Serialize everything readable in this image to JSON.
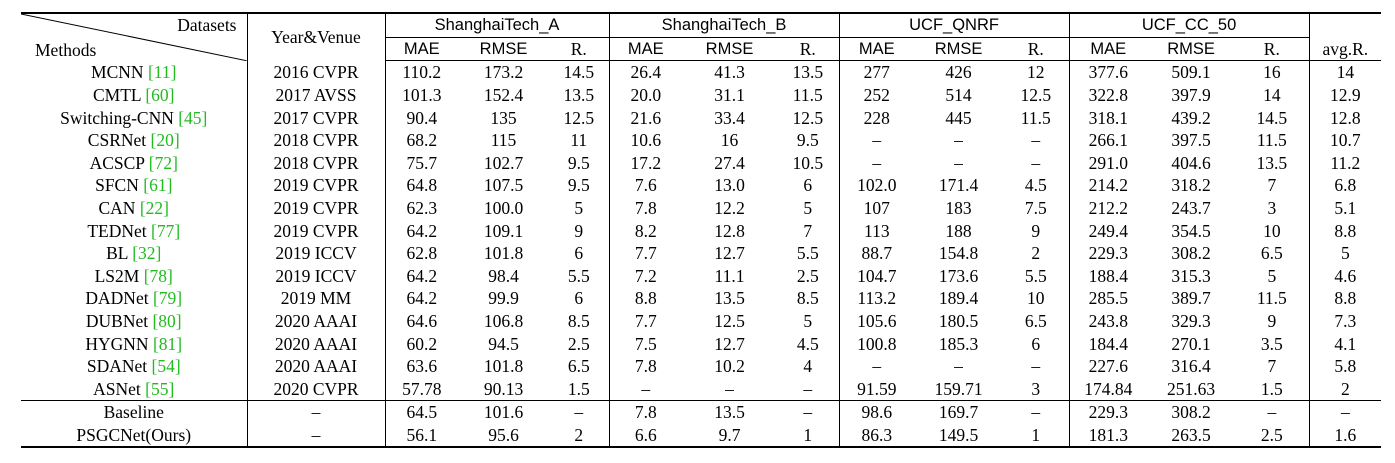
{
  "header": {
    "datasets_label": "Datasets",
    "methods_label": "Methods",
    "year_venue_label": "Year&Venue",
    "datasets": [
      "ShanghaiTech_A",
      "ShanghaiTech_B",
      "UCF_QNRF",
      "UCF_CC_50"
    ],
    "subcols": [
      "MAE",
      "RMSE",
      "R."
    ],
    "avg_label": "avg.R."
  },
  "rows": [
    {
      "name": "MCNN",
      "ref": "[11]",
      "venue": "2016 CVPR",
      "v": [
        "110.2",
        "173.2",
        "14.5",
        "26.4",
        "41.3",
        "13.5",
        "277",
        "426",
        "12",
        "377.6",
        "509.1",
        "16",
        "14"
      ]
    },
    {
      "name": "CMTL",
      "ref": "[60]",
      "venue": "2017 AVSS",
      "v": [
        "101.3",
        "152.4",
        "13.5",
        "20.0",
        "31.1",
        "11.5",
        "252",
        "514",
        "12.5",
        "322.8",
        "397.9",
        "14",
        "12.9"
      ]
    },
    {
      "name": "Switching-CNN",
      "ref": "[45]",
      "venue": "2017 CVPR",
      "v": [
        "90.4",
        "135",
        "12.5",
        "21.6",
        "33.4",
        "12.5",
        "228",
        "445",
        "11.5",
        "318.1",
        "439.2",
        "14.5",
        "12.8"
      ]
    },
    {
      "name": "CSRNet",
      "ref": "[20]",
      "venue": "2018 CVPR",
      "v": [
        "68.2",
        "115",
        "11",
        "10.6",
        "16",
        "9.5",
        "–",
        "–",
        "–",
        "266.1",
        "397.5",
        "11.5",
        "10.7"
      ]
    },
    {
      "name": "ACSCP",
      "ref": "[72]",
      "venue": "2018 CVPR",
      "v": [
        "75.7",
        "102.7",
        "9.5",
        "17.2",
        "27.4",
        "10.5",
        "–",
        "–",
        "–",
        "291.0",
        "404.6",
        "13.5",
        "11.2"
      ]
    },
    {
      "name": "SFCN",
      "ref": "[61]",
      "venue": "2019 CVPR",
      "v": [
        "64.8",
        "107.5",
        "9.5",
        "7.6",
        "13.0",
        "6",
        "102.0",
        "171.4",
        "4.5",
        "214.2",
        "318.2",
        "7",
        "6.8"
      ]
    },
    {
      "name": "CAN",
      "ref": "[22]",
      "venue": "2019 CVPR",
      "v": [
        "62.3",
        "100.0",
        "5",
        "7.8",
        "12.2",
        "5",
        "107",
        "183",
        "7.5",
        "212.2",
        "243.7",
        "3",
        "5.1"
      ],
      "bold": [
        10
      ]
    },
    {
      "name": "TEDNet",
      "ref": "[77]",
      "venue": "2019 CVPR",
      "v": [
        "64.2",
        "109.1",
        "9",
        "8.2",
        "12.8",
        "7",
        "113",
        "188",
        "9",
        "249.4",
        "354.5",
        "10",
        "8.8"
      ]
    },
    {
      "name": "BL",
      "ref": "[32]",
      "venue": "2019 ICCV",
      "v": [
        "62.8",
        "101.8",
        "6",
        "7.7",
        "12.7",
        "5.5",
        "88.7",
        "154.8",
        "2",
        "229.3",
        "308.2",
        "6.5",
        "5"
      ]
    },
    {
      "name": "LS2M",
      "ref": "[78]",
      "venue": "2019 ICCV",
      "v": [
        "64.2",
        "98.4",
        "5.5",
        "7.2",
        "11.1",
        "2.5",
        "104.7",
        "173.6",
        "5.5",
        "188.4",
        "315.3",
        "5",
        "4.6"
      ]
    },
    {
      "name": "DADNet",
      "ref": "[79]",
      "venue": "2019 MM",
      "v": [
        "64.2",
        "99.9",
        "6",
        "8.8",
        "13.5",
        "8.5",
        "113.2",
        "189.4",
        "10",
        "285.5",
        "389.7",
        "11.5",
        "8.8"
      ]
    },
    {
      "name": "DUBNet",
      "ref": "[80]",
      "venue": "2020 AAAI",
      "v": [
        "64.6",
        "106.8",
        "8.5",
        "7.7",
        "12.5",
        "5",
        "105.6",
        "180.5",
        "6.5",
        "243.8",
        "329.3",
        "9",
        "7.3"
      ]
    },
    {
      "name": "HYGNN",
      "ref": "[81]",
      "venue": "2020 AAAI",
      "v": [
        "60.2",
        "94.5",
        "2.5",
        "7.5",
        "12.7",
        "4.5",
        "100.8",
        "185.3",
        "6",
        "184.4",
        "270.1",
        "3.5",
        "4.1"
      ]
    },
    {
      "name": "SDANet",
      "ref": "[54]",
      "venue": "2020 AAAI",
      "v": [
        "63.6",
        "101.8",
        "6.5",
        "7.8",
        "10.2",
        "4",
        "–",
        "–",
        "–",
        "227.6",
        "316.4",
        "7",
        "5.8"
      ]
    },
    {
      "name": "ASNet",
      "ref": "[55]",
      "venue": "2020 CVPR",
      "v": [
        "57.78",
        "90.13",
        "1.5",
        "–",
        "–",
        "–",
        "91.59",
        "159.71",
        "3",
        "174.84",
        "251.63",
        "1.5",
        "2"
      ],
      "bold": [
        1,
        9
      ]
    },
    {
      "name": "Baseline",
      "ref": "",
      "venue": "–",
      "v": [
        "64.5",
        "101.6",
        "–",
        "7.8",
        "13.5",
        "–",
        "98.6",
        "169.7",
        "–",
        "229.3",
        "308.2",
        "–",
        "–"
      ],
      "sep": true
    },
    {
      "name": "PSGCNet(Ours)",
      "ref": "",
      "venue": "–",
      "v": [
        "56.1",
        "95.6",
        "2",
        "6.6",
        "9.7",
        "1",
        "86.3",
        "149.5",
        "1",
        "181.3",
        "263.5",
        "2.5",
        "1.6"
      ],
      "bold": [
        0,
        3,
        4,
        6,
        7,
        12
      ]
    }
  ]
}
